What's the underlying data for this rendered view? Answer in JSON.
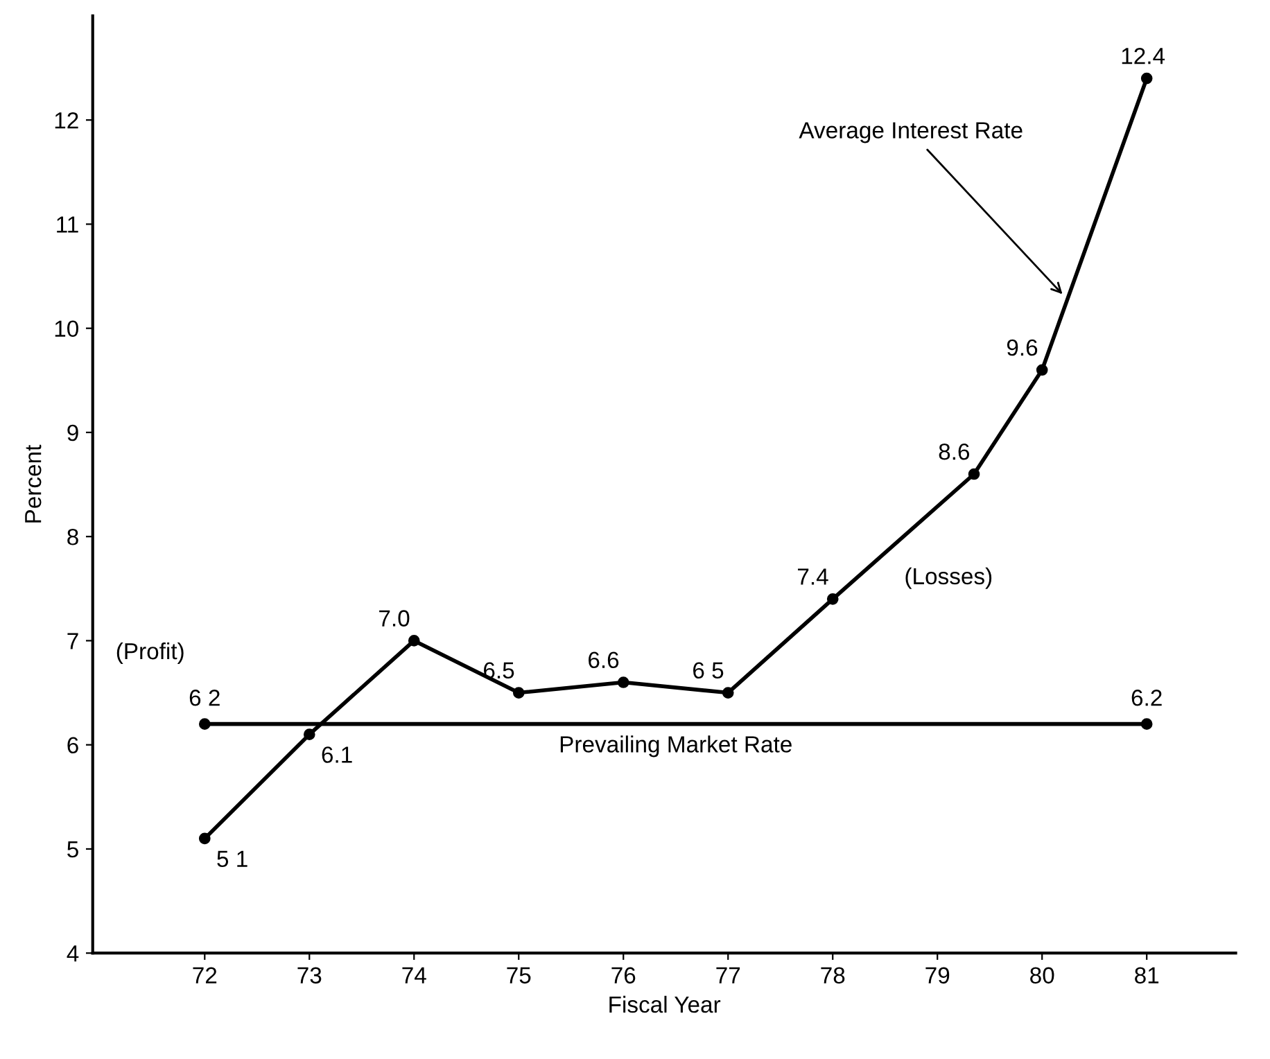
{
  "chart_data": {
    "type": "line",
    "xlabel": "Fiscal Year",
    "ylabel": "Percent",
    "series": [
      {
        "color": "#000000",
        "x": [
          72,
          73,
          74,
          75,
          76,
          77,
          78,
          79.35,
          80,
          81
        ],
        "values": [
          5.1,
          6.1,
          7.0,
          6.5,
          6.6,
          6.5,
          7.4,
          8.6,
          9.6,
          12.4
        ],
        "value_labels": [
          "5 1",
          "6.1",
          "7.0",
          "6.5",
          "6.6",
          "6 5",
          "7.4",
          "8.6",
          "9.6",
          "12.4"
        ]
      },
      {
        "name": "Prevailing Market Rate",
        "color": "#000000",
        "x": [
          72,
          81
        ],
        "values": [
          6.2,
          6.2
        ],
        "value_labels": [
          "6 2",
          "6.2"
        ]
      }
    ],
    "annotations": [
      {
        "text": "Average Interest Rate",
        "x": 80.22,
        "y": 10.3
      },
      "(Profit)",
      "(Losses)"
    ],
    "xlim": [
      70.93,
      81.85
    ],
    "ylim": [
      4,
      13
    ],
    "xticks": [
      72,
      73,
      74,
      75,
      76,
      77,
      78,
      79,
      80,
      81
    ],
    "yticks": [
      4,
      5,
      6,
      7,
      8,
      9,
      10,
      11,
      12
    ],
    "marker": "circle",
    "line_style": "solid",
    "grid": false,
    "legend": false
  }
}
